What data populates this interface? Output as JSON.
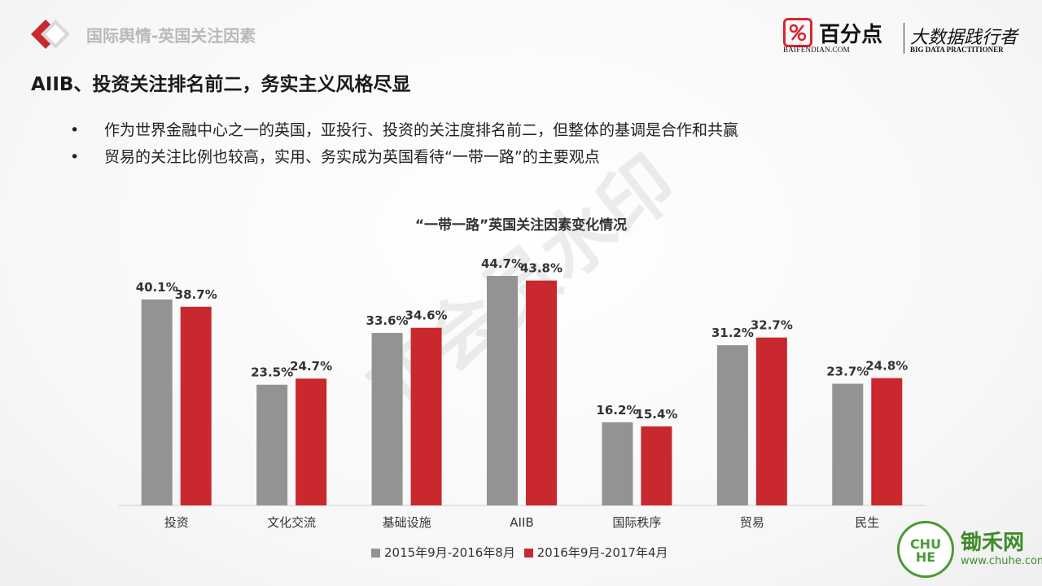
{
  "header": {
    "section_title": "国际舆情-英国关注因素",
    "brand_name": "百分点",
    "brand_url": "BAIFENDIAN.COM",
    "brand_slogan": "大数据践行者",
    "brand_slogan_en": "BIG DATA PRACTITIONER"
  },
  "headline": "AIIB、投资关注排名前二，务实主义风格尽显",
  "bullets": [
    "作为世界金融中心之一的英国，亚投行、投资的关注度排名前二，但整体的基调是合作和共赢",
    "贸易的关注比例也较高，实用、务实成为英国看待“一带一路”的主要观点"
  ],
  "bullet_symbol": "•",
  "watermark": "非会员水印",
  "corner": {
    "badge_text": "CHU HE",
    "name": "锄禾网",
    "url": "www.chuhe.com"
  },
  "chart_data": {
    "type": "bar",
    "title": "“一带一路”英国关注因素变化情况",
    "categories": [
      "投资",
      "文化交流",
      "基础设施",
      "AIIB",
      "国际秩序",
      "贸易",
      "民生"
    ],
    "series": [
      {
        "name": "2015年9月-2016年8月",
        "color": "#939393",
        "values": [
          40.1,
          23.5,
          33.6,
          44.7,
          16.2,
          31.2,
          23.7
        ]
      },
      {
        "name": "2016年9月-2017年4月",
        "color": "#c8282e",
        "values": [
          38.7,
          24.7,
          34.6,
          43.8,
          15.4,
          32.7,
          24.8
        ]
      }
    ],
    "value_suffix": "%",
    "ylim": [
      0,
      50
    ],
    "grid": false,
    "legend_position": "bottom"
  }
}
